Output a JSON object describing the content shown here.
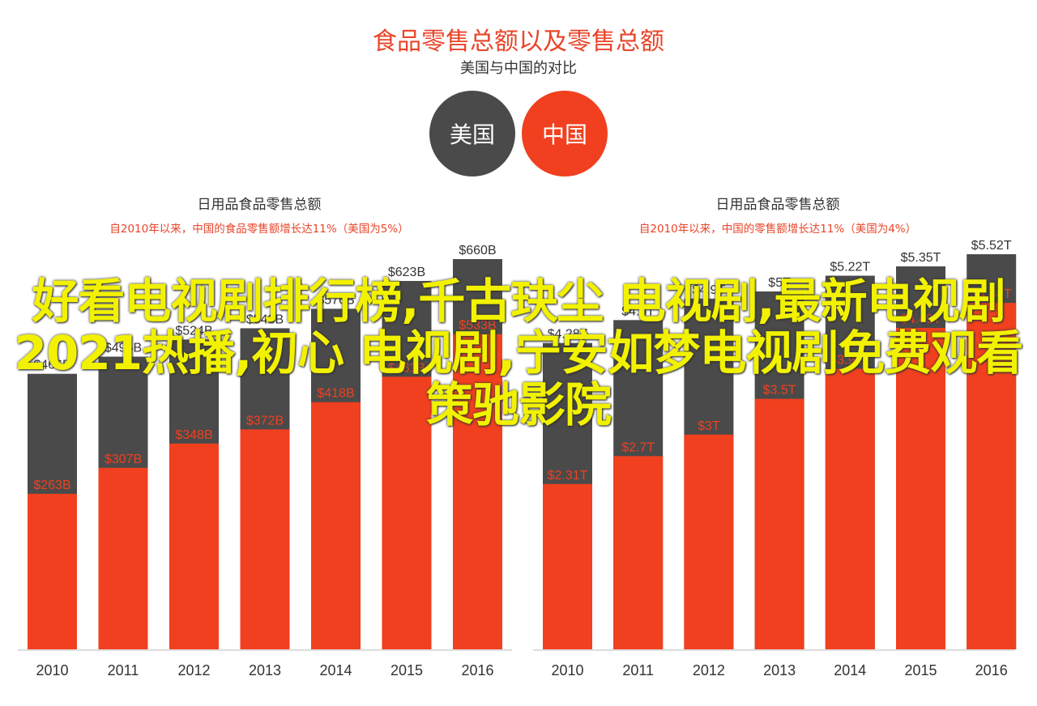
{
  "header": {
    "title": "食品零售总额以及零售总额",
    "subtitle": "美国与中国的对比"
  },
  "legend": {
    "us": {
      "label": "美国",
      "color": "#4a4a4a"
    },
    "cn": {
      "label": "中国",
      "color": "#f0401f"
    }
  },
  "overlay_text": "好看电视剧排行榜,千古玦尘 电视剧,最新电视剧2021热播,初心 电视剧,宁安如梦电视剧免费观看策驰影院",
  "chart_data": [
    {
      "type": "bar",
      "title": "日用品食品零售总额",
      "subtitle": "自2010年以来，中国的食品零售额增长达11%（美国为5%）",
      "categories": [
        "2010",
        "2011",
        "2012",
        "2013",
        "2014",
        "2015",
        "2016"
      ],
      "ylim": [
        0,
        700
      ],
      "series": [
        {
          "name": "美国",
          "values": [
            466,
            495,
            524,
            543,
            576,
            623,
            660
          ],
          "labels": [
            "$466B",
            "$495B",
            "$524B",
            "$543B",
            "$576B",
            "$623B",
            "$660B"
          ]
        },
        {
          "name": "中国",
          "values": [
            263,
            307,
            348,
            372,
            418,
            461,
            533
          ],
          "labels": [
            "$263B",
            "$307B",
            "$348B",
            "$372B",
            "$418B",
            "$461B",
            "$533B"
          ]
        }
      ]
    },
    {
      "type": "bar",
      "title": "日用品食品零售总额",
      "subtitle": "自2010年以来，中国的零售额增长达11%（美国为4%）",
      "categories": [
        "2010",
        "2011",
        "2012",
        "2013",
        "2014",
        "2015",
        "2016"
      ],
      "ylim": [
        0,
        5.8
      ],
      "series": [
        {
          "name": "美国",
          "values": [
            4.28,
            4.6,
            4.9,
            5.0,
            5.22,
            5.35,
            5.52
          ],
          "labels": [
            "$4.28T",
            "$4.6T",
            "$4.9T",
            "$5T",
            "$5.22T",
            "$5.35T",
            "$5.52T"
          ]
        },
        {
          "name": "中国",
          "values": [
            2.31,
            2.7,
            3.0,
            3.5,
            3.92,
            4.49,
            4.84
          ],
          "labels": [
            "$2.31T",
            "$2.7T",
            "$3T",
            "$3.5T",
            "$3.92T",
            "$4.49T",
            "$4.84T"
          ]
        }
      ]
    }
  ]
}
